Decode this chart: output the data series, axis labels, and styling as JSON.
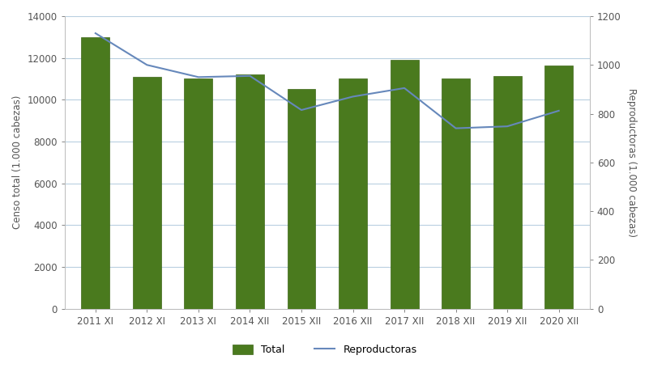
{
  "categories": [
    "2011 XI",
    "2012 XI",
    "2013 XI",
    "2014 XII",
    "2015 XII",
    "2016 XII",
    "2017 XII",
    "2018 XII",
    "2019 XII",
    "2020 XII"
  ],
  "total_values": [
    13000,
    11100,
    11000,
    11200,
    10500,
    11000,
    11900,
    11000,
    11150,
    11650
  ],
  "reproductoras_values": [
    1130,
    1000,
    950,
    955,
    815,
    870,
    905,
    740,
    748,
    812
  ],
  "bar_color": "#4a7a1e",
  "bar_edge_color": "#3d6618",
  "line_color": "#6688bb",
  "ylabel_left": "Censo total (1.000 cabezas)",
  "ylabel_right": "Reproductoras (1.000 cabezas)",
  "ylim_left": [
    0,
    14000
  ],
  "ylim_right": [
    0,
    1200
  ],
  "yticks_left": [
    0,
    2000,
    4000,
    6000,
    8000,
    10000,
    12000,
    14000
  ],
  "yticks_right": [
    0,
    200,
    400,
    600,
    800,
    1000,
    1200
  ],
  "legend_total": "Total",
  "legend_reproductoras": "Reproductoras",
  "background_color": "#ffffff",
  "grid_color": "#b8cfe0",
  "axis_fontsize": 8.5,
  "tick_fontsize": 8.5,
  "legend_fontsize": 9
}
